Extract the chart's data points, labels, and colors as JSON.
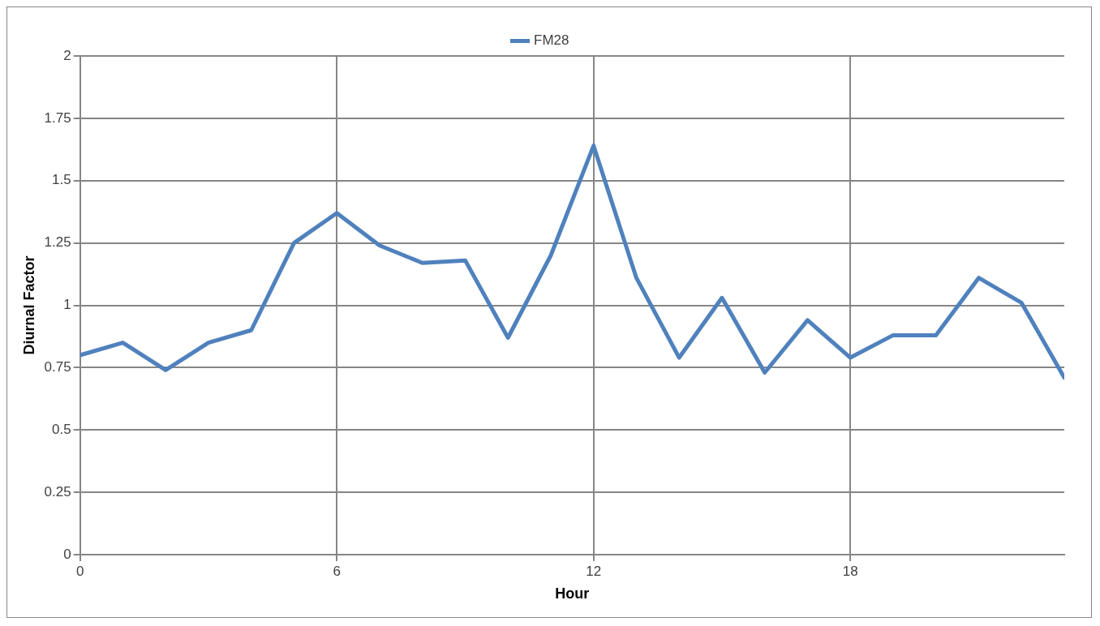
{
  "chart_data": {
    "type": "line",
    "xlabel": "Hour",
    "ylabel": "Diurnal Factor",
    "x": [
      0,
      1,
      2,
      3,
      4,
      5,
      6,
      7,
      8,
      9,
      10,
      11,
      12,
      13,
      14,
      15,
      16,
      17,
      18,
      19,
      20,
      21,
      22,
      23
    ],
    "series": [
      {
        "name": "FM28",
        "color": "#4f81bd",
        "values": [
          0.8,
          0.85,
          0.74,
          0.85,
          0.9,
          1.25,
          1.37,
          1.24,
          1.17,
          1.18,
          0.87,
          1.2,
          1.64,
          1.11,
          0.79,
          1.03,
          0.73,
          0.94,
          0.79,
          0.88,
          0.88,
          1.11,
          1.01,
          0.71
        ]
      }
    ],
    "xlim": [
      0,
      23
    ],
    "xticks": [
      0,
      6,
      12,
      18
    ],
    "ylim": [
      0,
      2
    ],
    "yticks": [
      0,
      0.25,
      0.5,
      0.75,
      1,
      1.25,
      1.5,
      1.75,
      2
    ],
    "grid": true,
    "legend": "top",
    "marker": "none",
    "line_style": "solid"
  }
}
